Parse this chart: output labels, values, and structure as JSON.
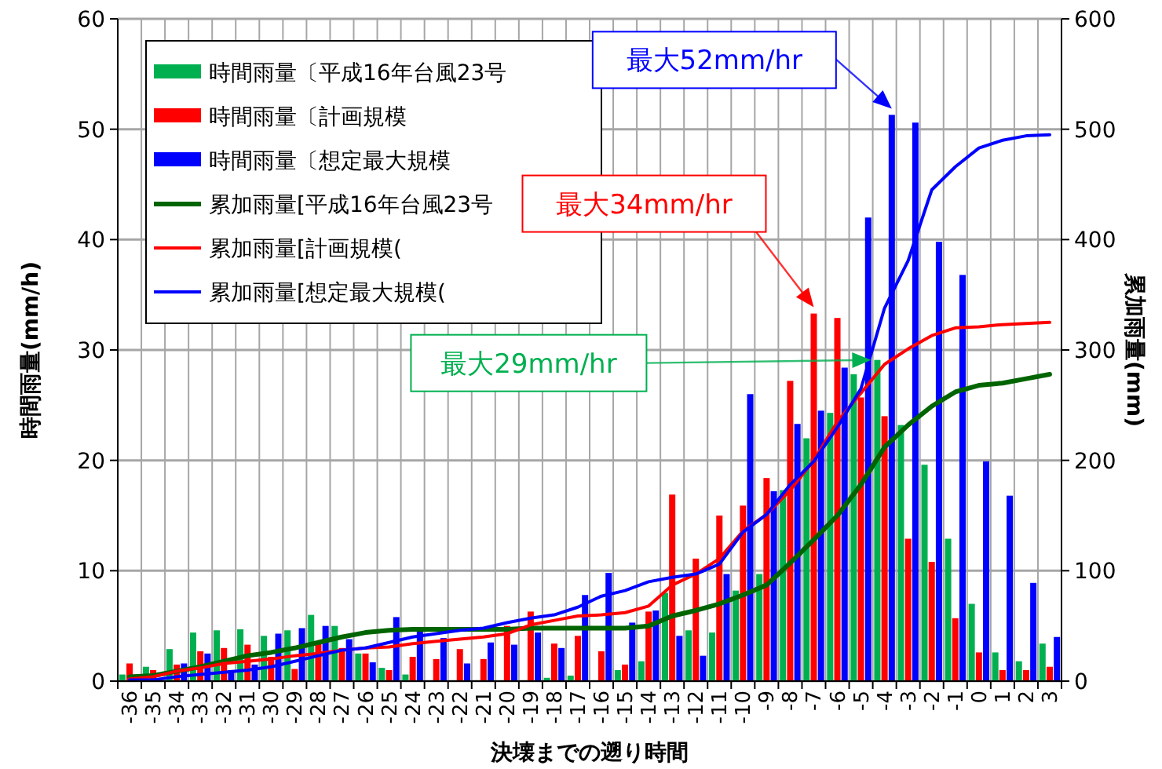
{
  "chart_data": {
    "type": "bar",
    "xlabel": "決壊までの遡り時間",
    "ylabel": "時間雨量(mm/h)",
    "y2label": "累加雨量(mm)",
    "categories": [
      "-36",
      "-35",
      "-34",
      "-33",
      "-32",
      "-31",
      "-30",
      "-29",
      "-28",
      "-27",
      "-26",
      "-25",
      "-24",
      "-23",
      "-22",
      "-21",
      "-20",
      "-19",
      "-18",
      "-17",
      "-16",
      "-15",
      "-14",
      "-13",
      "-12",
      "-11",
      "-10",
      "-9",
      "-8",
      "-7",
      "-6",
      "-5",
      "-4",
      "-3",
      "-2",
      "-1",
      "0",
      "1",
      "2",
      "3"
    ],
    "series": [
      {
        "name": "時間雨量〔平成16年台風23号",
        "color": "#00b050",
        "values": [
          0.6,
          1.3,
          2.9,
          4.4,
          4.6,
          4.7,
          4.1,
          4.6,
          6.0,
          5.0,
          2.5,
          1.2,
          0.6,
          0,
          0,
          0,
          0,
          0,
          0.3,
          0.5,
          0,
          1.0,
          1.8,
          8.0,
          4.6,
          4.4,
          8.2,
          9.7,
          17.3,
          22.0,
          24.3,
          27.8,
          29.1,
          23.2,
          19.6,
          12.9,
          7.0,
          2.6,
          1.8,
          3.4
        ]
      },
      {
        "name": "時間雨量〔計画規模",
        "color": "#ff0000",
        "values": [
          1.6,
          1.0,
          1.5,
          2.7,
          3.0,
          3.3,
          2.2,
          1.1,
          3.4,
          3.0,
          2.5,
          1.0,
          2.2,
          2.0,
          2.9,
          2.0,
          5.0,
          6.3,
          3.4,
          4.1,
          2.7,
          1.5,
          6.3,
          16.9,
          11.1,
          15.0,
          15.9,
          18.4,
          27.2,
          33.3,
          32.9,
          25.7,
          24.0,
          12.9,
          10.8,
          5.7,
          2.6,
          1.0,
          1.0,
          1.3
        ]
      },
      {
        "name": "時間雨量〔想定最大規模",
        "color": "#0000ff",
        "values": [
          0,
          0,
          1.6,
          2.5,
          1.0,
          1.5,
          4.3,
          4.8,
          5.0,
          3.8,
          1.7,
          5.8,
          4.5,
          3.9,
          1.6,
          3.5,
          3.3,
          4.4,
          3.0,
          7.8,
          9.8,
          5.3,
          6.4,
          4.1,
          2.3,
          9.7,
          26.0,
          17.2,
          23.3,
          24.5,
          28.4,
          42.0,
          51.3,
          50.6,
          39.8,
          36.8,
          19.9,
          16.8,
          8.9,
          4.0
        ]
      },
      {
        "name": "累加雨量[平成16年台風23号",
        "type": "line",
        "axis": "y2",
        "color": "#006400",
        "values": [
          4,
          5,
          9,
          13,
          18,
          23,
          26,
          30,
          35,
          40,
          44,
          46,
          47,
          47,
          47,
          47,
          47,
          48,
          48,
          48,
          48,
          48,
          50,
          59,
          64,
          70,
          78,
          87,
          107,
          128,
          150,
          178,
          212,
          232,
          249,
          262,
          268,
          270,
          274,
          278
        ]
      },
      {
        "name": "累加雨量[計画規模(",
        "type": "line",
        "axis": "y2",
        "color": "#ff0000",
        "values": [
          2,
          4,
          9,
          12,
          16,
          18,
          20,
          23,
          25,
          28,
          30,
          31,
          34,
          36,
          38,
          40,
          43,
          51,
          55,
          59,
          60,
          62,
          68,
          87,
          97,
          111,
          136,
          151,
          173,
          200,
          235,
          261,
          287,
          301,
          313,
          320,
          321,
          323,
          324,
          325
        ]
      },
      {
        "name": "累加雨量[想定最大規模(",
        "type": "line",
        "axis": "y2",
        "color": "#0000ff",
        "values": [
          1,
          1,
          4,
          6,
          8,
          10,
          13,
          18,
          23,
          28,
          30,
          35,
          40,
          43,
          46,
          48,
          53,
          57,
          60,
          67,
          77,
          82,
          90,
          94,
          97,
          106,
          135,
          151,
          178,
          199,
          230,
          265,
          338,
          381,
          445,
          466,
          483,
          490,
          494,
          495
        ]
      }
    ],
    "ylim": [
      0,
      60
    ],
    "yticks": [
      0,
      10,
      20,
      30,
      40,
      50,
      60
    ],
    "y2lim": [
      0,
      600
    ],
    "y2ticks": [
      0,
      100,
      200,
      300,
      400,
      500,
      600
    ],
    "grid": true,
    "legend": "top left",
    "annotations": [
      "最大52mm/hr",
      "最大34mm/hr",
      "最大29mm/hr"
    ]
  }
}
